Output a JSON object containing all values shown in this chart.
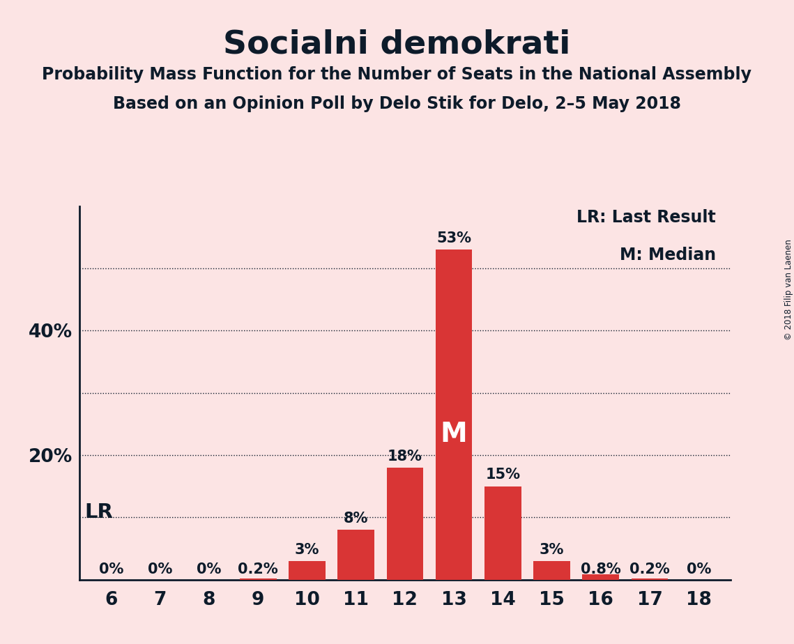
{
  "title": "Socialni demokrati",
  "subtitle1": "Probability Mass Function for the Number of Seats in the National Assembly",
  "subtitle2": "Based on an Opinion Poll by Delo Stik for Delo, 2–5 May 2018",
  "copyright": "© 2018 Filip van Laenen",
  "categories": [
    6,
    7,
    8,
    9,
    10,
    11,
    12,
    13,
    14,
    15,
    16,
    17,
    18
  ],
  "values": [
    0.0,
    0.0,
    0.0,
    0.2,
    3.0,
    8.0,
    18.0,
    53.0,
    15.0,
    3.0,
    0.8,
    0.2,
    0.0
  ],
  "bar_color": "#d93535",
  "background_color": "#fce4e4",
  "text_color": "#0d1b2a",
  "bar_labels": [
    "0%",
    "0%",
    "0%",
    "0.2%",
    "3%",
    "8%",
    "18%",
    "53%",
    "15%",
    "3%",
    "0.8%",
    "0.2%",
    "0%"
  ],
  "ylim": [
    0,
    60
  ],
  "grid_lines": [
    10,
    20,
    30,
    40,
    50
  ],
  "ytick_show": [
    20,
    40
  ],
  "lr_label": "LR",
  "median_seat": 13,
  "median_label": "M",
  "legend_lr": "LR: Last Result",
  "legend_m": "M: Median",
  "title_fontsize": 34,
  "subtitle_fontsize": 17,
  "tick_fontsize": 19,
  "label_fontsize": 15,
  "bar_label_fontsize": 15,
  "median_fontsize": 28,
  "lr_fontsize": 21,
  "legend_fontsize": 17,
  "ytick_fontsize": 19
}
